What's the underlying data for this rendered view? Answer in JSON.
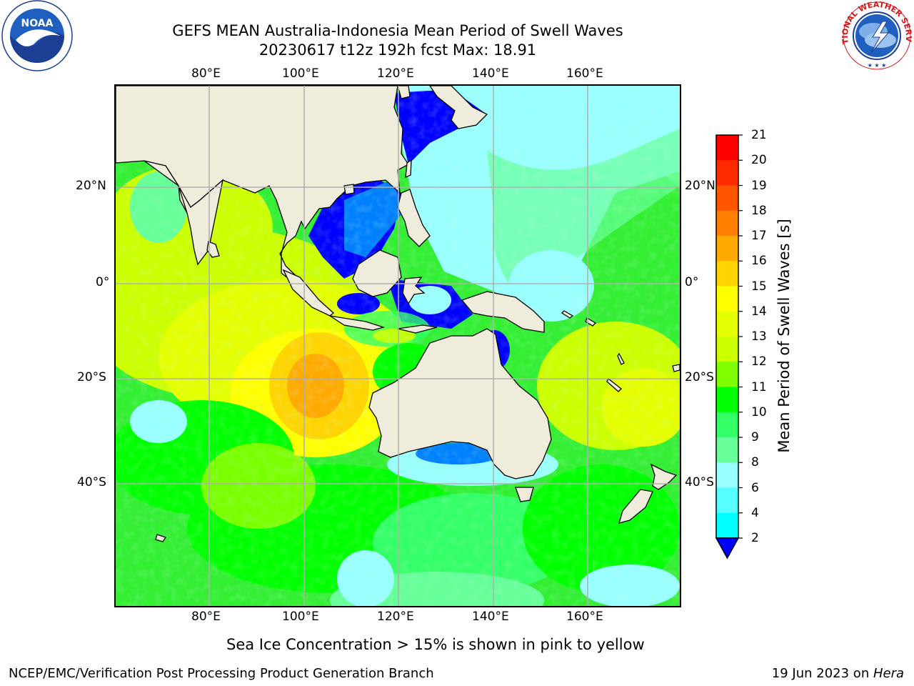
{
  "header": {
    "title_line1": "GEFS MEAN Australia-Indonesia Mean Period of Swell Waves",
    "title_line2": "20230617 t12z 192h fcst   Max: 18.91"
  },
  "logos": {
    "noaa_text": "NOAA",
    "nws_text": "NATIONAL WEATHER SERVICE"
  },
  "map": {
    "lon_ticks": [
      "80°E",
      "100°E",
      "120°E",
      "140°E",
      "160°E"
    ],
    "lat_ticks": [
      "20°N",
      "0°",
      "20°S",
      "40°S"
    ],
    "colors": {
      "land": "#efecdb",
      "grid": "#b0b0b0"
    }
  },
  "colorbar": {
    "label": "Mean Period of Swell Waves [s]",
    "ticks": [
      "21",
      "20",
      "19",
      "18",
      "17",
      "16",
      "15",
      "14",
      "13",
      "12",
      "11",
      "10",
      "9",
      "8",
      "6",
      "4",
      "2"
    ],
    "colors": [
      "#ff0000",
      "#ff2a00",
      "#ff5500",
      "#ff7f00",
      "#ffaa00",
      "#ffd400",
      "#ffff00",
      "#e5ff00",
      "#ccff00",
      "#7fff00",
      "#00ff00",
      "#33ff66",
      "#66ff99",
      "#99ffff",
      "#55ffff",
      "#00ffff",
      "#0080ff",
      "#0000ff"
    ]
  },
  "footer": {
    "note": "Sea Ice Concentration > 15% is shown in pink to yellow",
    "left": "NCEP/EMC/Verification Post Processing Product Generation Branch",
    "right_date": "19 Jun 2023 on ",
    "right_machine": "Hera"
  }
}
